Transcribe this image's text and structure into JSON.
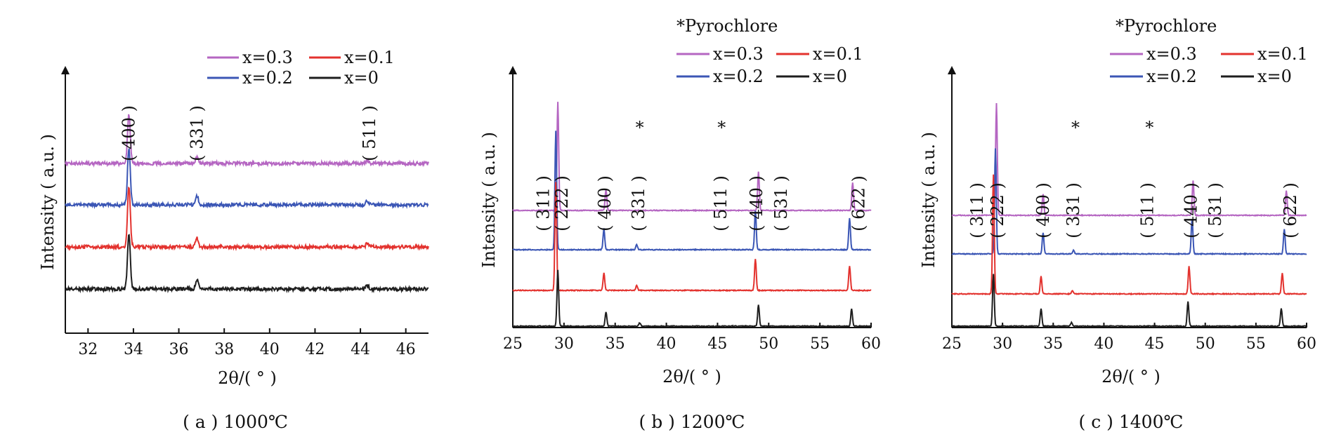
{
  "chart_data": [
    {
      "type": "line",
      "caption": "( a ) 1000℃",
      "xlabel": "2θ/( ° )",
      "ylabel": "Intensity ( a.u. )",
      "xlim": [
        31,
        47
      ],
      "x_ticks": [
        32,
        34,
        36,
        38,
        40,
        42,
        44,
        46
      ],
      "legend_title": "",
      "legend": [
        "x=0.3",
        "x=0.1",
        "x=0.2",
        "x=0"
      ],
      "series": [
        {
          "name": "x=0.3",
          "color": "#b566c2",
          "peaks": [
            {
              "x": 33.8,
              "h": 0.14
            },
            {
              "x": 36.8,
              "h": 0.02
            },
            {
              "x": 44.3,
              "h": 0.01
            }
          ]
        },
        {
          "name": "x=0.2",
          "color": "#3b56b5",
          "peaks": [
            {
              "x": 33.8,
              "h": 0.16
            },
            {
              "x": 36.8,
              "h": 0.025
            },
            {
              "x": 44.3,
              "h": 0.01
            }
          ]
        },
        {
          "name": "x=0.1",
          "color": "#e3322e",
          "peaks": [
            {
              "x": 33.8,
              "h": 0.17
            },
            {
              "x": 36.8,
              "h": 0.025
            },
            {
              "x": 44.3,
              "h": 0.01
            }
          ]
        },
        {
          "name": "x=0",
          "color": "#1e1e1e",
          "peaks": [
            {
              "x": 33.8,
              "h": 0.16
            },
            {
              "x": 36.8,
              "h": 0.025
            },
            {
              "x": 44.3,
              "h": 0.01
            }
          ]
        }
      ],
      "annotations": [
        {
          "text": "( 400 )",
          "x": 33.8
        },
        {
          "text": "( 331 )",
          "x": 36.8
        },
        {
          "text": "( 511 )",
          "x": 44.4
        }
      ]
    },
    {
      "type": "line",
      "caption": "( b ) 1200℃",
      "xlabel": "2θ/( ° )",
      "ylabel": "Intensity ( a.u. )",
      "xlim": [
        25,
        60
      ],
      "x_ticks": [
        25,
        30,
        35,
        40,
        45,
        50,
        55,
        60
      ],
      "legend_title": "*Pyrochlore",
      "legend": [
        "x=0.3",
        "x=0.1",
        "x=0.2",
        "x=0"
      ],
      "series": [
        {
          "name": "x=0.3",
          "color": "#b566c2",
          "peaks": [
            {
              "x": 29.4,
              "h": 0.31
            },
            {
              "x": 34.1,
              "h": 0.06
            },
            {
              "x": 49.0,
              "h": 0.11
            },
            {
              "x": 58.2,
              "h": 0.08
            }
          ]
        },
        {
          "name": "x=0.2",
          "color": "#3b56b5",
          "peaks": [
            {
              "x": 29.2,
              "h": 0.34
            },
            {
              "x": 33.9,
              "h": 0.06
            },
            {
              "x": 37.1,
              "h": 0.015
            },
            {
              "x": 48.7,
              "h": 0.11
            },
            {
              "x": 57.9,
              "h": 0.09
            }
          ]
        },
        {
          "name": "x=0.1",
          "color": "#e3322e",
          "peaks": [
            {
              "x": 29.2,
              "h": 0.31
            },
            {
              "x": 33.9,
              "h": 0.05
            },
            {
              "x": 37.1,
              "h": 0.015
            },
            {
              "x": 48.7,
              "h": 0.09
            },
            {
              "x": 57.9,
              "h": 0.07
            }
          ]
        },
        {
          "name": "x=0",
          "color": "#1e1e1e",
          "peaks": [
            {
              "x": 29.4,
              "h": 0.16
            },
            {
              "x": 34.1,
              "h": 0.04
            },
            {
              "x": 37.4,
              "h": 0.01
            },
            {
              "x": 49.0,
              "h": 0.06
            },
            {
              "x": 58.1,
              "h": 0.05
            }
          ]
        }
      ],
      "annotations": [
        {
          "text": "( 311 )",
          "x": 28.0
        },
        {
          "text": "( 222 )",
          "x": 29.8
        },
        {
          "text": "( 400 )",
          "x": 34.0
        },
        {
          "text": "( 331 )",
          "x": 37.3
        },
        {
          "text": "( 511 )",
          "x": 45.3
        },
        {
          "text": "( 440 )",
          "x": 48.8
        },
        {
          "text": "( 531 )",
          "x": 51.2
        },
        {
          "text": "( 622 )",
          "x": 58.8
        }
      ],
      "stars": [
        37.4,
        45.4
      ]
    },
    {
      "type": "line",
      "caption": "( c ) 1400℃",
      "xlabel": "2θ/( ° )",
      "ylabel": "Intensity ( a.u. )",
      "xlim": [
        25,
        60
      ],
      "x_ticks": [
        25,
        30,
        35,
        40,
        45,
        50,
        55,
        60
      ],
      "legend_title": "*Pyrochlore",
      "legend": [
        "x=0.3",
        "x=0.1",
        "x=0.2",
        "x=0"
      ],
      "series": [
        {
          "name": "x=0.3",
          "color": "#b566c2",
          "peaks": [
            {
              "x": 29.4,
              "h": 0.32
            },
            {
              "x": 34.0,
              "h": 0.06
            },
            {
              "x": 48.8,
              "h": 0.1
            },
            {
              "x": 58.0,
              "h": 0.07
            }
          ]
        },
        {
          "name": "x=0.2",
          "color": "#3b56b5",
          "peaks": [
            {
              "x": 29.3,
              "h": 0.3
            },
            {
              "x": 34.0,
              "h": 0.06
            },
            {
              "x": 37.0,
              "h": 0.01
            },
            {
              "x": 48.7,
              "h": 0.1
            },
            {
              "x": 57.8,
              "h": 0.07
            }
          ]
        },
        {
          "name": "x=0.1",
          "color": "#e3322e",
          "peaks": [
            {
              "x": 29.1,
              "h": 0.34
            },
            {
              "x": 33.8,
              "h": 0.05
            },
            {
              "x": 36.9,
              "h": 0.01
            },
            {
              "x": 48.4,
              "h": 0.08
            },
            {
              "x": 57.6,
              "h": 0.06
            }
          ]
        },
        {
          "name": "x=0",
          "color": "#1e1e1e",
          "peaks": [
            {
              "x": 29.1,
              "h": 0.15
            },
            {
              "x": 33.8,
              "h": 0.05
            },
            {
              "x": 36.8,
              "h": 0.01
            },
            {
              "x": 48.3,
              "h": 0.07
            },
            {
              "x": 57.5,
              "h": 0.05
            }
          ]
        }
      ],
      "annotations": [
        {
          "text": "( 311 )",
          "x": 27.5
        },
        {
          "text": "( 222 )",
          "x": 29.5
        },
        {
          "text": "( 400 )",
          "x": 34.0
        },
        {
          "text": "( 331 )",
          "x": 37.0
        },
        {
          "text": "( 511 )",
          "x": 44.3
        },
        {
          "text": "( 440 )",
          "x": 48.6
        },
        {
          "text": "( 531 )",
          "x": 51.0
        },
        {
          "text": "( 622 )",
          "x": 58.4
        }
      ],
      "stars": [
        37.2,
        44.5
      ]
    }
  ]
}
